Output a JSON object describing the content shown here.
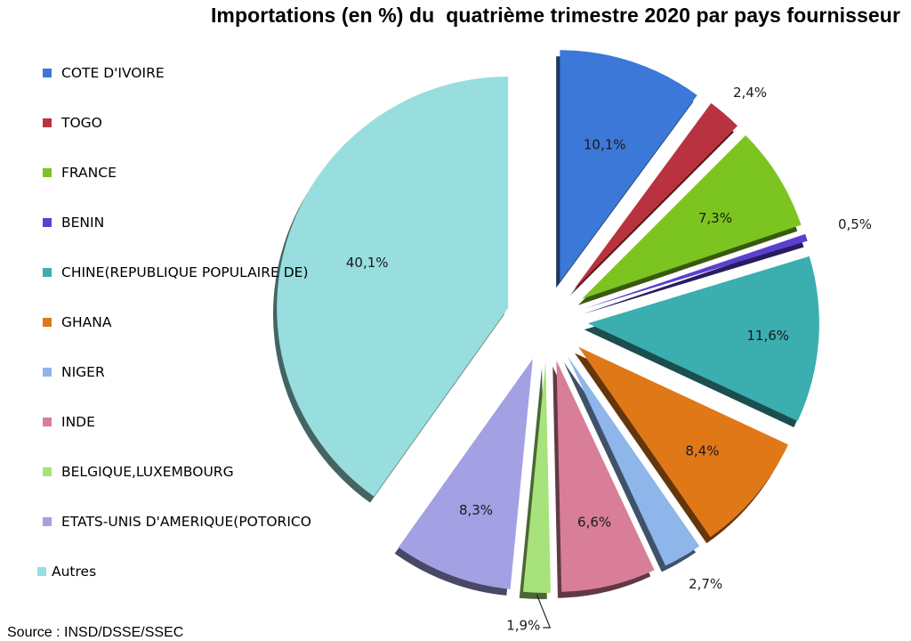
{
  "chart_data": {
    "type": "pie",
    "title": "Importations (en %) du  quatrième trimestre 2020 par pays fournisseur",
    "legend_position": "left",
    "exploded": true,
    "slices": [
      {
        "label": "COTE D'IVOIRE",
        "value": 10.1,
        "value_label": "10,1%",
        "color": "#3C78D8"
      },
      {
        "label": "TOGO",
        "value": 2.4,
        "value_label": "2,4%",
        "color": "#B8333F"
      },
      {
        "label": "FRANCE",
        "value": 7.3,
        "value_label": "7,3%",
        "color": "#7CC520"
      },
      {
        "label": "BENIN",
        "value": 0.5,
        "value_label": "0,5%",
        "color": "#5B3FD0"
      },
      {
        "label": "CHINE(REPUBLIQUE POPULAIRE DE)",
        "value": 11.6,
        "value_label": "11,6%",
        "color": "#3BAEB0"
      },
      {
        "label": "GHANA",
        "value": 8.4,
        "value_label": "8,4%",
        "color": "#E07818"
      },
      {
        "label": "NIGER",
        "value": 2.7,
        "value_label": "2,7%",
        "color": "#8EB6EA"
      },
      {
        "label": "INDE",
        "value": 6.6,
        "value_label": "6,6%",
        "color": "#D87E98"
      },
      {
        "label": "BELGIQUE,LUXEMBOURG",
        "value": 1.9,
        "value_label": "1,9%",
        "color": "#A8E27A"
      },
      {
        "label": "ETATS-UNIS D'AMERIQUE(POTORICO",
        "value": 8.3,
        "value_label": "8,3%",
        "color": "#A4A0E4"
      },
      {
        "label": "Autres",
        "value": 40.1,
        "value_label": "40,1%",
        "color": "#98DEDE"
      }
    ]
  },
  "source": "Source : INSD/DSSE/SSEC"
}
